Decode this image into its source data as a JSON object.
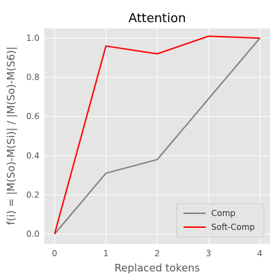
{
  "chart_data": {
    "type": "line",
    "title": "Attention",
    "xlabel": "Replaced tokens",
    "ylabel": "f(i) = |M(So)-M(Si)| / |M(So)-M(S6)|",
    "x": [
      0,
      1,
      2,
      3,
      4
    ],
    "xticks": [
      "0",
      "1",
      "2",
      "3",
      "4"
    ],
    "yticks": [
      "0.0",
      "0.2",
      "0.4",
      "0.6",
      "0.8",
      "1.0"
    ],
    "xlim": [
      -0.2,
      4.2
    ],
    "ylim": [
      -0.05,
      1.05
    ],
    "grid": true,
    "legend_position": "lower-right",
    "background_color": "#e5e5e5",
    "grid_color": "#ffffff",
    "series": [
      {
        "name": "Comp",
        "color": "#808080",
        "values": [
          0.0,
          0.31,
          0.38,
          0.69,
          1.0
        ]
      },
      {
        "name": "Soft-Comp",
        "color": "#ff0000",
        "values": [
          0.0,
          0.96,
          0.92,
          1.01,
          1.0
        ]
      }
    ]
  }
}
